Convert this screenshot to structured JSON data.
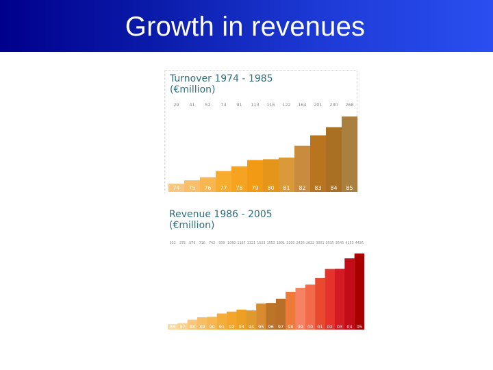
{
  "header": {
    "title": "Growth in revenues",
    "background_color": "#0a1aa8",
    "text_color": "#ffffff"
  },
  "chart_data": [
    {
      "type": "bar",
      "title": "Turnover 1974 - 1985",
      "subtitle": "(€million)",
      "xlabel": "",
      "ylabel": "",
      "grid": false,
      "categories": [
        "74",
        "75",
        "76",
        "77",
        "78",
        "79",
        "80",
        "81",
        "82",
        "83",
        "84",
        "85"
      ],
      "values": [
        29,
        41,
        52,
        74,
        91,
        113,
        116,
        122,
        164,
        201,
        230,
        268
      ],
      "value_labels": [
        "29",
        "41",
        "52",
        "74",
        "91",
        "113",
        "116",
        "122",
        "164",
        "201",
        "230",
        "268"
      ],
      "colors": [
        "#f7c680",
        "#f8be6a",
        "#f8b650",
        "#f8ac2e",
        "#f5a320",
        "#f29a14",
        "#e5951a",
        "#da9a3a",
        "#c98b3e",
        "#b8741e",
        "#a96f22",
        "#a9803f"
      ],
      "ylim": [
        0,
        268
      ]
    },
    {
      "type": "bar",
      "title": "Revenue 1986 - 2005",
      "subtitle": "(€million)",
      "xlabel": "",
      "ylabel": "",
      "grid": false,
      "categories": [
        "86",
        "87",
        "88",
        "89",
        "90",
        "91",
        "92",
        "93",
        "94",
        "95",
        "96",
        "97",
        "98",
        "99",
        "00",
        "01",
        "02",
        "03",
        "04",
        "05"
      ],
      "values": [
        312,
        375,
        576,
        716,
        742,
        939,
        1050,
        1167,
        1121,
        1523,
        1553,
        1801,
        2200,
        2436,
        2622,
        3001,
        3535,
        3543,
        4153,
        4436
      ],
      "value_labels": [
        "312",
        "375",
        "576",
        "716",
        "742",
        "939",
        "1050",
        "1167",
        "1121",
        "1523",
        "1553",
        "1801",
        "2200",
        "2436",
        "2622",
        "3001",
        "3535",
        "3543",
        "4153",
        "4436"
      ],
      "colors": [
        "#fbd9a0",
        "#fad292",
        "#f9c87c",
        "#f8be66",
        "#f8b650",
        "#f5ad3a",
        "#f3a52c",
        "#eca026",
        "#e09a2c",
        "#d98b30",
        "#bc7428",
        "#ba6f28",
        "#ee7a3a",
        "#f58262",
        "#f16a4a",
        "#e84a30",
        "#e6322a",
        "#d41a22",
        "#c20c18",
        "#a80000"
      ],
      "ylim": [
        0,
        4436
      ]
    }
  ]
}
